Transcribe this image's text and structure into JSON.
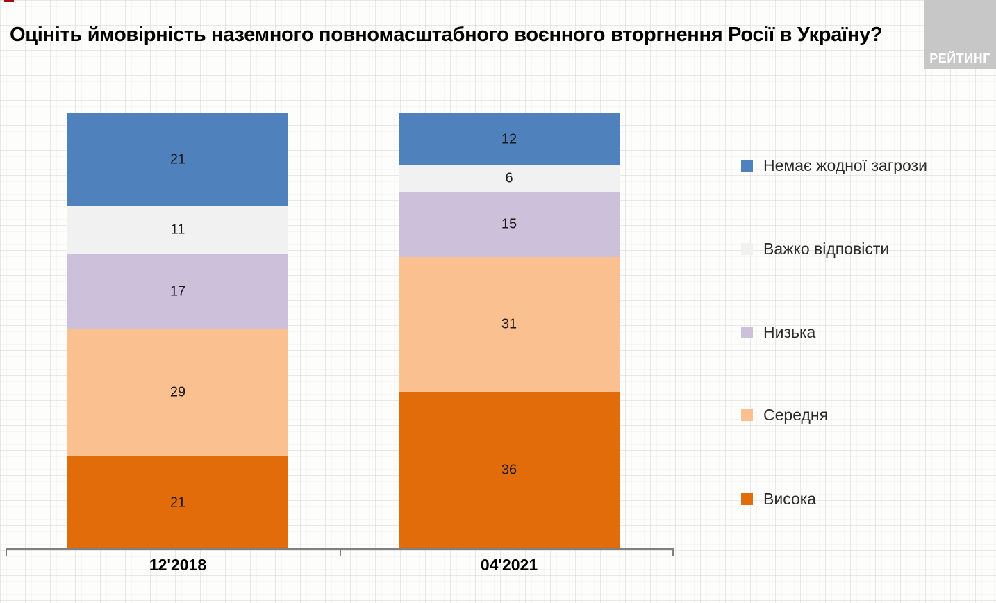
{
  "title": "Оцініть ймовірність наземного повномасштабного воєнного вторгнення Росії в Україну?",
  "logo": {
    "text": "РЕЙТИНГ",
    "bg_color": "#c7c7c7",
    "text_color": "#ffffff"
  },
  "chart_data": {
    "type": "bar",
    "variant": "stacked-column",
    "title": "Оцініть ймовірність наземного повномасштабного воєнного вторгнення Росії в Україну?",
    "xlabel": "",
    "ylabel": "",
    "ylim": [
      0,
      100
    ],
    "grid": "faint graph-paper background",
    "legend_position": "right",
    "value_labels_shown": true,
    "categories": [
      "12'2018",
      "04'2021"
    ],
    "series": [
      {
        "name": "Висока",
        "color": "#e36c0a",
        "values": [
          21,
          36
        ]
      },
      {
        "name": "Середня",
        "color": "#fac090",
        "values": [
          29,
          31
        ]
      },
      {
        "name": "Низька",
        "color": "#ccc0da",
        "values": [
          17,
          15
        ]
      },
      {
        "name": "Важко відповісти",
        "color": "#f2f1f1",
        "values": [
          11,
          6
        ]
      },
      {
        "name": "Немає жодної загрози",
        "color": "#4f81bd",
        "values": [
          21,
          12
        ]
      }
    ],
    "stack_order": "first-series-at-bottom",
    "legend_order_top_to_bottom": [
      "Немає жодної загрози",
      "Важко відповісти",
      "Низька",
      "Середня",
      "Висока"
    ]
  }
}
